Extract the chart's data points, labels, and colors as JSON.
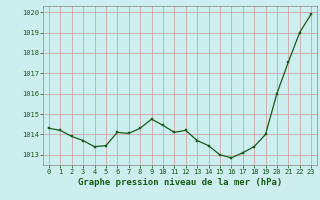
{
  "x": [
    0,
    1,
    2,
    3,
    4,
    5,
    6,
    7,
    8,
    9,
    10,
    11,
    12,
    13,
    14,
    15,
    16,
    17,
    18,
    19,
    20,
    21,
    22,
    23
  ],
  "y": [
    1014.3,
    1014.2,
    1013.9,
    1013.7,
    1013.4,
    1013.45,
    1014.1,
    1014.05,
    1014.3,
    1014.75,
    1014.45,
    1014.1,
    1014.2,
    1013.7,
    1013.45,
    1013.0,
    1012.85,
    1013.1,
    1013.4,
    1014.0,
    1016.0,
    1017.55,
    1019.0,
    1019.9
  ],
  "line_color": "#1a5c1a",
  "marker_color": "#1a5c1a",
  "bg_color": "#cceeee",
  "grid_color": "#cc9999",
  "xlabel": "Graphe pression niveau de la mer (hPa)",
  "xlabel_color": "#1a5c1a",
  "tick_color": "#1a5c1a",
  "ylim": [
    1012.5,
    1020.3
  ],
  "xlim": [
    -0.5,
    23.5
  ],
  "yticks": [
    1013,
    1014,
    1015,
    1016,
    1017,
    1018,
    1019,
    1020
  ],
  "xticks": [
    0,
    1,
    2,
    3,
    4,
    5,
    6,
    7,
    8,
    9,
    10,
    11,
    12,
    13,
    14,
    15,
    16,
    17,
    18,
    19,
    20,
    21,
    22,
    23
  ],
  "xtick_labels": [
    "0",
    "1",
    "2",
    "3",
    "4",
    "5",
    "6",
    "7",
    "8",
    "9",
    "10",
    "11",
    "12",
    "13",
    "14",
    "15",
    "16",
    "17",
    "18",
    "19",
    "20",
    "21",
    "22",
    "23"
  ],
  "ytick_labels": [
    "1013",
    "1014",
    "1015",
    "1016",
    "1017",
    "1018",
    "1019",
    "1020"
  ]
}
